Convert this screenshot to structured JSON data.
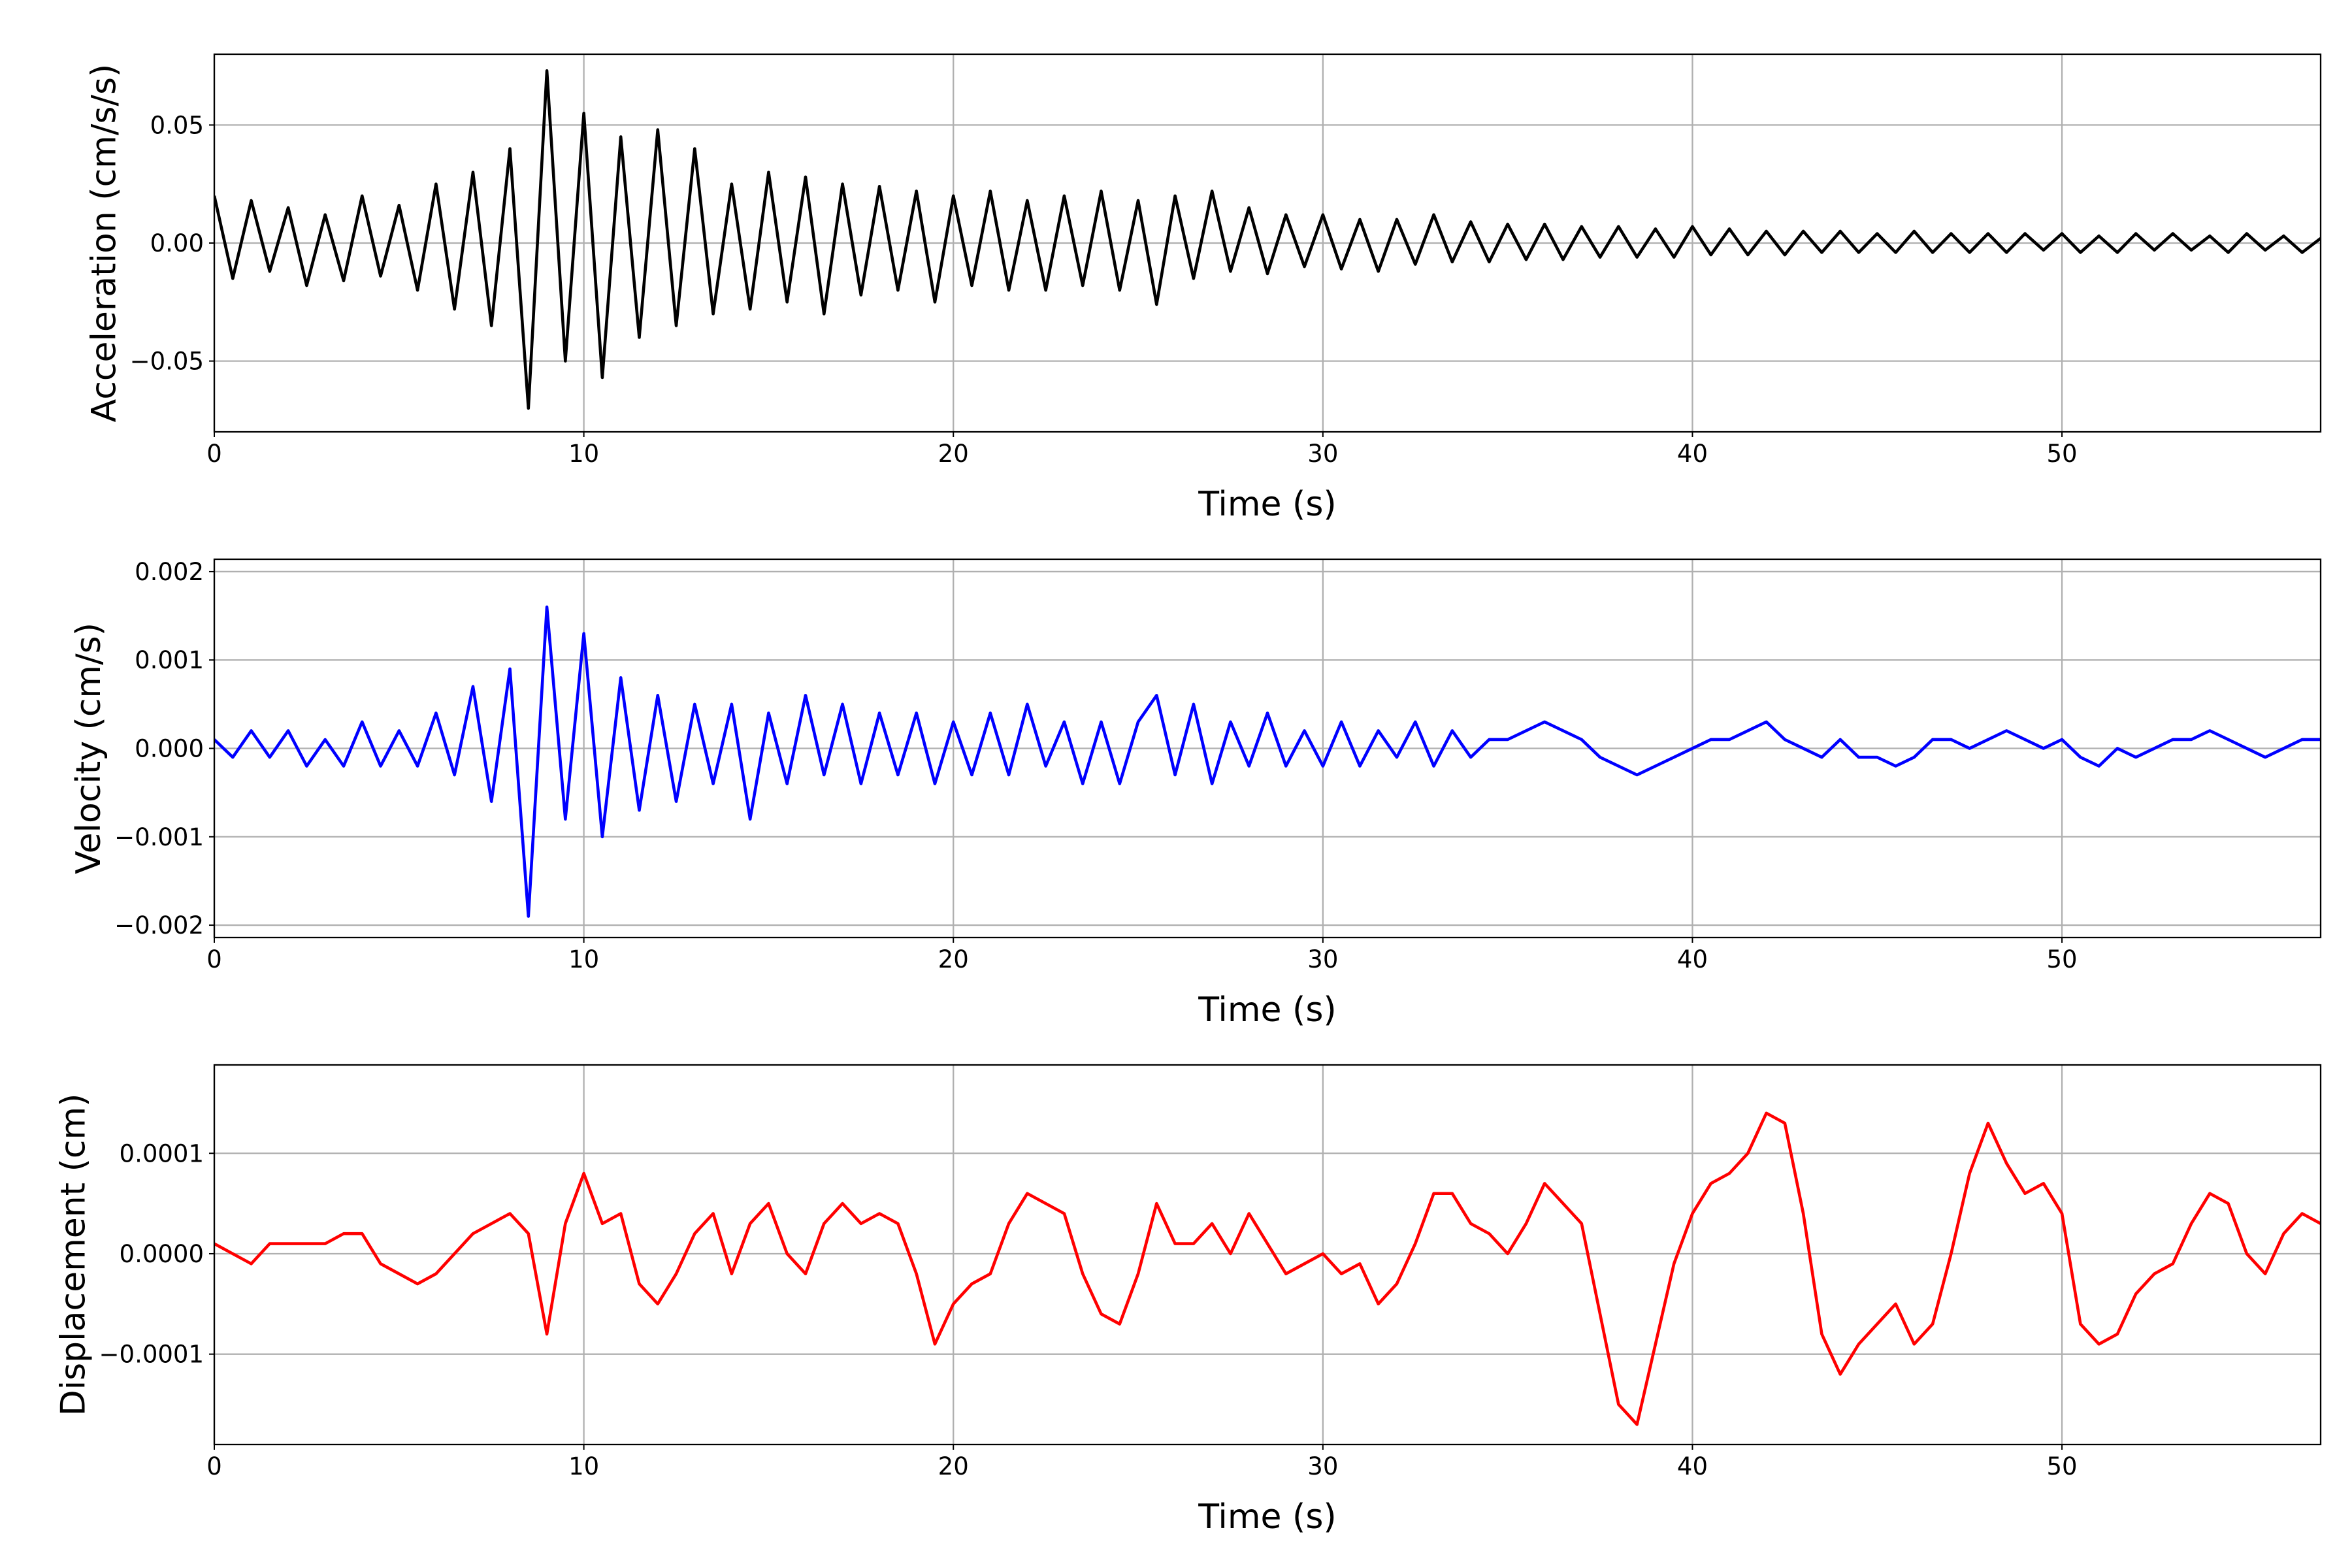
{
  "chart_data": [
    {
      "type": "line",
      "xlabel": "Time (s)",
      "ylabel": "Acceleration (cm/s/s)",
      "x": [
        0,
        0.5,
        1,
        1.5,
        2,
        2.5,
        3,
        3.5,
        4,
        4.5,
        5,
        5.5,
        6,
        6.5,
        7,
        7.5,
        8,
        8.5,
        9,
        9.5,
        10,
        10.5,
        11,
        11.5,
        12,
        12.5,
        13,
        13.5,
        14,
        14.5,
        15,
        15.5,
        16,
        16.5,
        17,
        17.5,
        18,
        18.5,
        19,
        19.5,
        20,
        20.5,
        21,
        21.5,
        22,
        22.5,
        23,
        23.5,
        24,
        24.5,
        25,
        25.5,
        26,
        26.5,
        27,
        27.5,
        28,
        28.5,
        29,
        29.5,
        30,
        30.5,
        31,
        31.5,
        32,
        32.5,
        33,
        33.5,
        34,
        34.5,
        35,
        35.5,
        36,
        36.5,
        37,
        37.5,
        38,
        38.5,
        39,
        39.5,
        40,
        40.5,
        41,
        41.5,
        42,
        42.5,
        43,
        43.5,
        44,
        44.5,
        45,
        45.5,
        46,
        46.5,
        47,
        47.5,
        48,
        48.5,
        49,
        49.5,
        50,
        50.5,
        51,
        51.5,
        52,
        52.5,
        53,
        53.5,
        54,
        54.5,
        55,
        55.5,
        56,
        56.5,
        57
      ],
      "series": [
        {
          "color": "#000000",
          "values": [
            0.02,
            -0.015,
            0.018,
            -0.012,
            0.015,
            -0.018,
            0.012,
            -0.016,
            0.02,
            -0.014,
            0.016,
            -0.02,
            0.025,
            -0.028,
            0.03,
            -0.035,
            0.04,
            -0.07,
            0.073,
            -0.05,
            0.055,
            -0.057,
            0.045,
            -0.04,
            0.048,
            -0.035,
            0.04,
            -0.03,
            0.025,
            -0.028,
            0.03,
            -0.025,
            0.028,
            -0.03,
            0.025,
            -0.022,
            0.024,
            -0.02,
            0.022,
            -0.025,
            0.02,
            -0.018,
            0.022,
            -0.02,
            0.018,
            -0.02,
            0.02,
            -0.018,
            0.022,
            -0.02,
            0.018,
            -0.026,
            0.02,
            -0.015,
            0.022,
            -0.012,
            0.015,
            -0.013,
            0.012,
            -0.01,
            0.012,
            -0.011,
            0.01,
            -0.012,
            0.01,
            -0.009,
            0.012,
            -0.008,
            0.009,
            -0.008,
            0.008,
            -0.007,
            0.008,
            -0.007,
            0.007,
            -0.006,
            0.007,
            -0.006,
            0.006,
            -0.006,
            0.007,
            -0.005,
            0.006,
            -0.005,
            0.005,
            -0.005,
            0.005,
            -0.004,
            0.005,
            -0.004,
            0.004,
            -0.004,
            0.005,
            -0.004,
            0.004,
            -0.004,
            0.004,
            -0.004,
            0.004,
            -0.003,
            0.004,
            -0.004,
            0.003,
            -0.004,
            0.004,
            -0.003,
            0.004,
            -0.003,
            0.003,
            -0.004,
            0.004,
            -0.003,
            0.003,
            -0.004,
            0.002
          ]
        }
      ],
      "xlim": [
        0,
        57
      ],
      "xticks": [
        0,
        10,
        20,
        30,
        40,
        50
      ],
      "ylim": [
        -0.08,
        0.08
      ],
      "yticks": [
        {
          "value": -0.05,
          "label": "−0.05"
        },
        {
          "value": 0,
          "label": "0.00"
        },
        0.05
      ],
      "grid": true
    },
    {
      "type": "line",
      "xlabel": "Time (s)",
      "ylabel": "Velocity (cm/s)",
      "x": [
        0,
        0.5,
        1,
        1.5,
        2,
        2.5,
        3,
        3.5,
        4,
        4.5,
        5,
        5.5,
        6,
        6.5,
        7,
        7.5,
        8,
        8.5,
        9,
        9.5,
        10,
        10.5,
        11,
        11.5,
        12,
        12.5,
        13,
        13.5,
        14,
        14.5,
        15,
        15.5,
        16,
        16.5,
        17,
        17.5,
        18,
        18.5,
        19,
        19.5,
        20,
        20.5,
        21,
        21.5,
        22,
        22.5,
        23,
        23.5,
        24,
        24.5,
        25,
        25.5,
        26,
        26.5,
        27,
        27.5,
        28,
        28.5,
        29,
        29.5,
        30,
        30.5,
        31,
        31.5,
        32,
        32.5,
        33,
        33.5,
        34,
        34.5,
        35,
        35.5,
        36,
        36.5,
        37,
        37.5,
        38,
        38.5,
        39,
        39.5,
        40,
        40.5,
        41,
        41.5,
        42,
        42.5,
        43,
        43.5,
        44,
        44.5,
        45,
        45.5,
        46,
        46.5,
        47,
        47.5,
        48,
        48.5,
        49,
        49.5,
        50,
        50.5,
        51,
        51.5,
        52,
        52.5,
        53,
        53.5,
        54,
        54.5,
        55,
        55.5,
        56,
        56.5,
        57
      ],
      "series": [
        {
          "color": "#0000ff",
          "values": [
            0.0001,
            -0.0001,
            0.0002,
            -0.0001,
            0.0002,
            -0.0002,
            0.0001,
            -0.0002,
            0.0003,
            -0.0002,
            0.0002,
            -0.0002,
            0.0004,
            -0.0003,
            0.0007,
            -0.0006,
            0.0009,
            -0.0019,
            0.0016,
            -0.0008,
            0.0013,
            -0.001,
            0.0008,
            -0.0007,
            0.0006,
            -0.0006,
            0.0005,
            -0.0004,
            0.0005,
            -0.0008,
            0.0004,
            -0.0004,
            0.0006,
            -0.0003,
            0.0005,
            -0.0004,
            0.0004,
            -0.0003,
            0.0004,
            -0.0004,
            0.0003,
            -0.0003,
            0.0004,
            -0.0003,
            0.0005,
            -0.0002,
            0.0003,
            -0.0004,
            0.0003,
            -0.0004,
            0.0003,
            0.0006,
            -0.0003,
            0.0005,
            -0.0004,
            0.0003,
            -0.0002,
            0.0004,
            -0.0002,
            0.0002,
            -0.0002,
            0.0003,
            -0.0002,
            0.0002,
            -0.0001,
            0.0003,
            -0.0002,
            0.0002,
            -0.0001,
            0.0001,
            0.0001,
            0.0002,
            0.0003,
            0.0002,
            0.0001,
            -0.0001,
            -0.0002,
            -0.0003,
            -0.0002,
            -0.0001,
            0,
            0.0001,
            0.0001,
            0.0002,
            0.0003,
            0.0001,
            0,
            -0.0001,
            0.0001,
            -0.0001,
            -0.0001,
            -0.0002,
            -0.0001,
            0.0001,
            0.0001,
            0,
            0.0001,
            0.0002,
            0.0001,
            0,
            0.0001,
            -0.0001,
            -0.0002,
            0,
            -0.0001,
            0,
            0.0001,
            0.0001,
            0.0002,
            0.0001,
            0,
            -0.0001,
            0,
            0.0001,
            0.0001
          ]
        }
      ],
      "xlim": [
        0,
        57
      ],
      "xticks": [
        0,
        10,
        20,
        30,
        40,
        50
      ],
      "ylim": [
        -0.00214,
        0.00214
      ],
      "yticks": [
        {
          "value": -0.002,
          "label": "−0.002"
        },
        {
          "value": -0.001,
          "label": "−0.001"
        },
        {
          "value": 0,
          "label": "0.000"
        },
        0.001,
        0.002
      ],
      "grid": true
    },
    {
      "type": "line",
      "xlabel": "Time (s)",
      "ylabel": "Displacement (cm)",
      "x": [
        0,
        0.5,
        1,
        1.5,
        2,
        2.5,
        3,
        3.5,
        4,
        4.5,
        5,
        5.5,
        6,
        6.5,
        7,
        7.5,
        8,
        8.5,
        9,
        9.5,
        10,
        10.5,
        11,
        11.5,
        12,
        12.5,
        13,
        13.5,
        14,
        14.5,
        15,
        15.5,
        16,
        16.5,
        17,
        17.5,
        18,
        18.5,
        19,
        19.5,
        20,
        20.5,
        21,
        21.5,
        22,
        22.5,
        23,
        23.5,
        24,
        24.5,
        25,
        25.5,
        26,
        26.5,
        27,
        27.5,
        28,
        28.5,
        29,
        29.5,
        30,
        30.5,
        31,
        31.5,
        32,
        32.5,
        33,
        33.5,
        34,
        34.5,
        35,
        35.5,
        36,
        36.5,
        37,
        37.5,
        38,
        38.5,
        39,
        39.5,
        40,
        40.5,
        41,
        41.5,
        42,
        42.5,
        43,
        43.5,
        44,
        44.5,
        45,
        45.5,
        46,
        46.5,
        47,
        47.5,
        48,
        48.5,
        49,
        49.5,
        50,
        50.5,
        51,
        51.5,
        52,
        52.5,
        53,
        53.5,
        54,
        54.5,
        55,
        55.5,
        56,
        56.5,
        57
      ],
      "series": [
        {
          "color": "#ff0000",
          "values": [
            1e-05,
            0,
            -1e-05,
            1e-05,
            1e-05,
            1e-05,
            1e-05,
            2e-05,
            2e-05,
            -1e-05,
            -2e-05,
            -3e-05,
            -2e-05,
            0,
            2e-05,
            3e-05,
            4e-05,
            2e-05,
            -8e-05,
            3e-05,
            8e-05,
            3e-05,
            4e-05,
            -3e-05,
            -5e-05,
            -2e-05,
            2e-05,
            4e-05,
            -2e-05,
            3e-05,
            5e-05,
            0,
            -2e-05,
            3e-05,
            5e-05,
            3e-05,
            4e-05,
            3e-05,
            -2e-05,
            -9e-05,
            -5e-05,
            -3e-05,
            -2e-05,
            3e-05,
            6e-05,
            5e-05,
            4e-05,
            -2e-05,
            -6e-05,
            -7e-05,
            -2e-05,
            5e-05,
            1e-05,
            1e-05,
            3e-05,
            0,
            4e-05,
            1e-05,
            -2e-05,
            -1e-05,
            0,
            -2e-05,
            -1e-05,
            -5e-05,
            -3e-05,
            1e-05,
            6e-05,
            6e-05,
            3e-05,
            2e-05,
            0,
            3e-05,
            7e-05,
            5e-05,
            3e-05,
            -6e-05,
            -0.00015,
            -0.00017,
            -9e-05,
            -1e-05,
            4e-05,
            7e-05,
            8e-05,
            0.0001,
            0.00014,
            0.00013,
            4e-05,
            -8e-05,
            -0.00012,
            -9e-05,
            -7e-05,
            -5e-05,
            -9e-05,
            -7e-05,
            0,
            8e-05,
            0.00013,
            9e-05,
            6e-05,
            7e-05,
            4e-05,
            -7e-05,
            -9e-05,
            -8e-05,
            -4e-05,
            -2e-05,
            -1e-05,
            3e-05,
            6e-05,
            5e-05,
            0,
            -2e-05,
            2e-05,
            4e-05,
            3e-05
          ]
        }
      ],
      "xlim": [
        0,
        57
      ],
      "xticks": [
        0,
        10,
        20,
        30,
        40,
        50
      ],
      "ylim": [
        -0.00019,
        0.000188
      ],
      "yticks": [
        {
          "value": -0.0001,
          "label": "−0.0001"
        },
        {
          "value": 0,
          "label": "0.0000"
        },
        0.0001
      ],
      "grid": true
    }
  ]
}
